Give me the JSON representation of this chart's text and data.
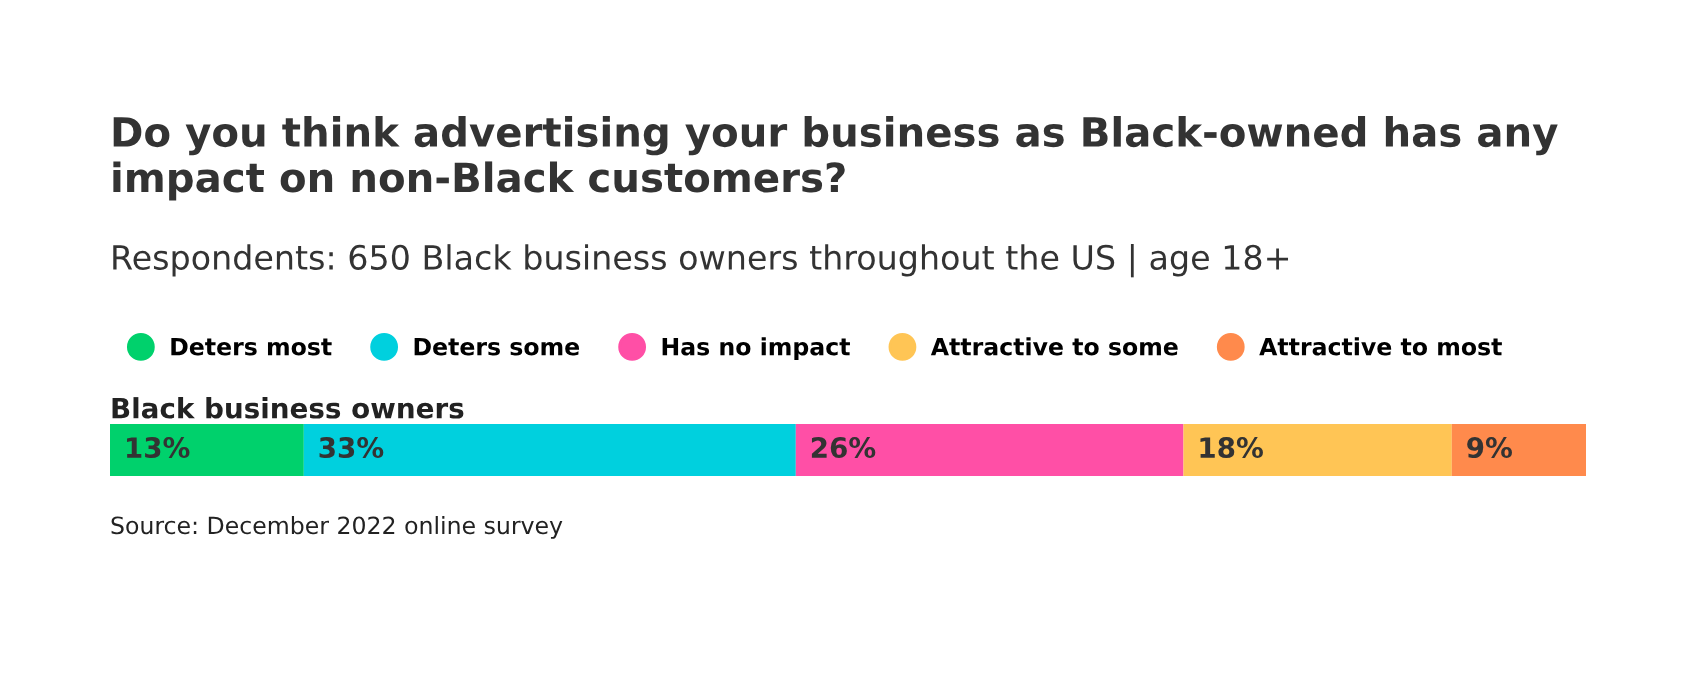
{
  "chart_data": {
    "type": "bar",
    "orientation": "horizontal",
    "stacked": true,
    "title": "Do you think advertising your business as Black-owned has any impact on non-Black customers?",
    "subtitle": "Respondents: 650 Black business owners throughout the US | age 18+",
    "categories": [
      "Black business owners"
    ],
    "series": [
      {
        "name": "Deters most",
        "color": "#00d16c",
        "values": [
          13
        ],
        "value_labels": [
          "13%"
        ]
      },
      {
        "name": "Deters some",
        "color": "#00d0de",
        "values": [
          33
        ],
        "value_labels": [
          "33%"
        ]
      },
      {
        "name": "Has no impact",
        "color": "#ff4fa6",
        "values": [
          26
        ],
        "value_labels": [
          "26%"
        ]
      },
      {
        "name": "Attractive to some",
        "color": "#ffc555",
        "values": [
          18
        ],
        "value_labels": [
          "18%"
        ]
      },
      {
        "name": "Attractive to most",
        "color": "#ff8a4c",
        "values": [
          9
        ],
        "value_labels": [
          "9%"
        ]
      }
    ],
    "legend": "top left",
    "annotations": [
      "Source: December 2022 online survey"
    ]
  }
}
